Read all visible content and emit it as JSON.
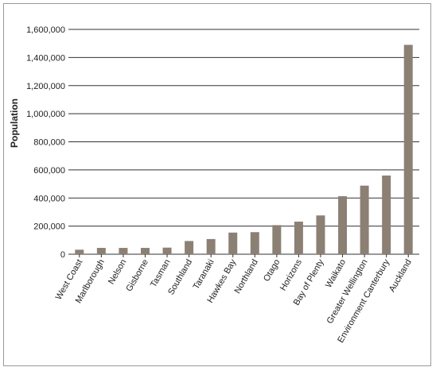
{
  "chart_data": {
    "type": "bar",
    "title": "",
    "xlabel": "",
    "ylabel": "Population",
    "ylim": [
      0,
      1600000
    ],
    "yticks": [
      0,
      200000,
      400000,
      600000,
      800000,
      1000000,
      1200000,
      1400000,
      1600000
    ],
    "ytick_labels": [
      "0",
      "200,000",
      "400,000",
      "600,000",
      "800,000",
      "1,000,000",
      "1,200,000",
      "1,400,000",
      "1,600,000"
    ],
    "grid": true,
    "legend": "none",
    "bar_color": "#8c8075",
    "categories": [
      "West Coast",
      "Marlborough",
      "Nelson",
      "Gisborne",
      "Tasman",
      "Southland",
      "Taranaki",
      "Hawkes Bay",
      "Northland",
      "Otago",
      "Horizons",
      "Bay of Plenty",
      "Waikato",
      "Greater Wellington",
      "Environment Canterbury",
      "Auckland"
    ],
    "values": [
      32000,
      45000,
      45000,
      45000,
      47000,
      94000,
      108000,
      154000,
      157000,
      207000,
      232000,
      276000,
      413000,
      488000,
      560000,
      1490000
    ]
  }
}
